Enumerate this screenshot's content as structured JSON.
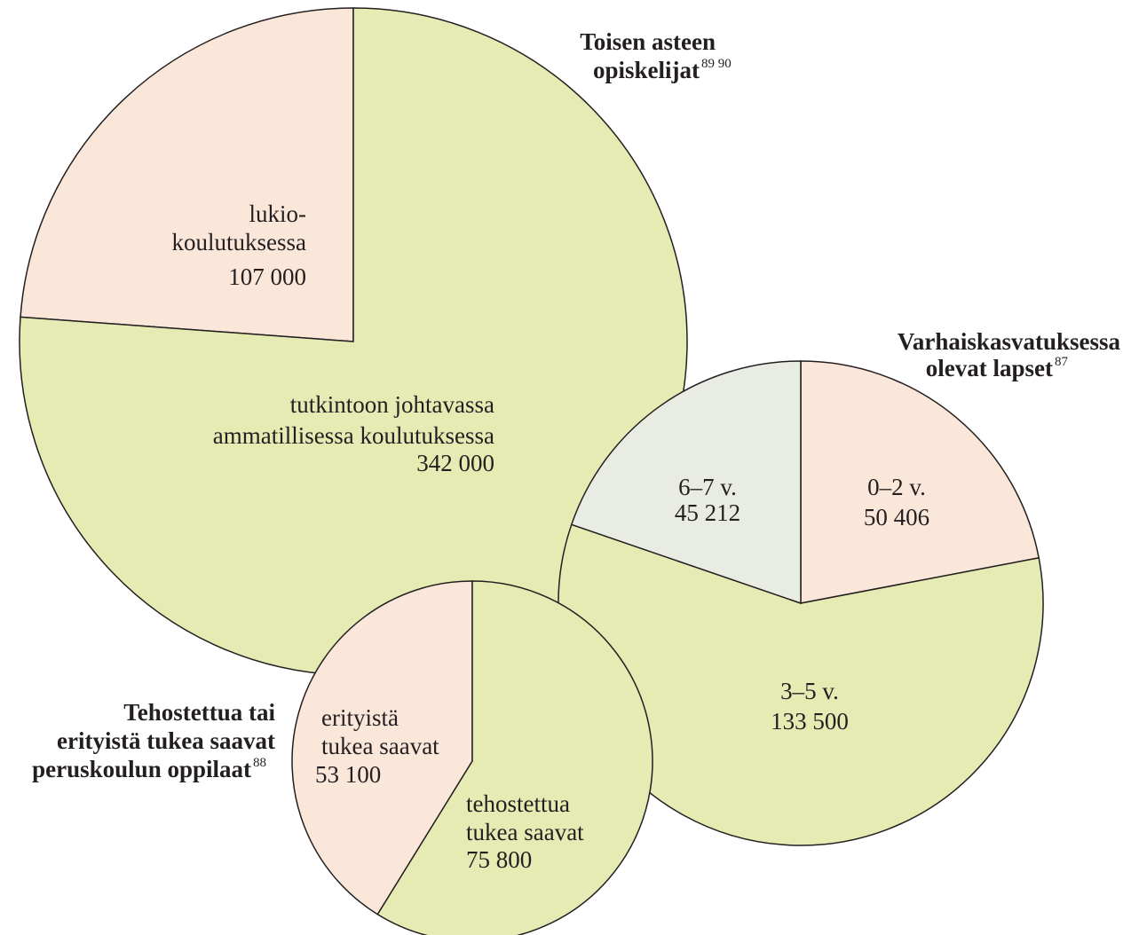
{
  "chart_data": [
    {
      "type": "pie",
      "title": "Toisen asteen\nopiskelijat",
      "footnote": "89 90",
      "categories": [
        "lukio-\nkoulutuksessa",
        "tutkintoon johtavassa\nammatillisessa koulutuksessa"
      ],
      "values": [
        107000,
        342000
      ],
      "value_labels": [
        "107 000",
        "342 000"
      ],
      "colors": [
        "#fbe7da",
        "#e6ebb4"
      ]
    },
    {
      "type": "pie",
      "title": "Varhaiskasvatuksessa\nolevat lapset",
      "footnote": "87",
      "categories": [
        "0–2 v.",
        "3–5 v.",
        "6–7 v."
      ],
      "values": [
        50406,
        133500,
        45212
      ],
      "value_labels": [
        "50 406",
        "133 500",
        "45 212"
      ],
      "colors": [
        "#fbe7da",
        "#e6ebb4",
        "#e9ece2"
      ]
    },
    {
      "type": "pie",
      "title": "Tehostettua tai\nerityistä tukea saavat\nperuskoulun oppilaat",
      "footnote": "88",
      "categories": [
        "erityistä\ntukea saavat",
        "tehostettua\ntukea saavat"
      ],
      "values": [
        53100,
        75800
      ],
      "value_labels": [
        "53 100",
        "75 800"
      ],
      "colors": [
        "#fbe7da",
        "#e6ebb4"
      ]
    }
  ]
}
